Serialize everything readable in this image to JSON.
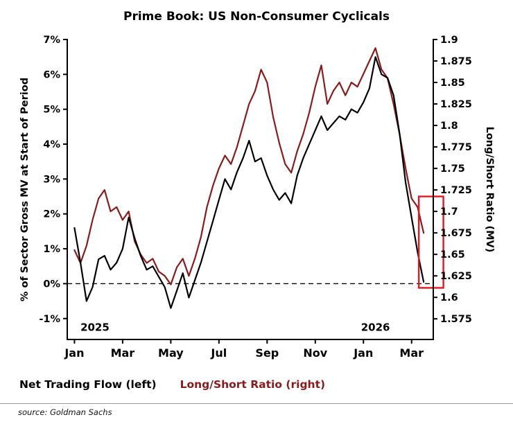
{
  "title": "Prime Book: US Non-Consumer Cyclicals",
  "legend": [
    {
      "label": "Net Trading Flow (left)",
      "color": "#000000"
    },
    {
      "label": "Long/Short Ratio (right)",
      "color": "#8b1a1a"
    }
  ],
  "source": "source: Goldman Sachs",
  "chart_data": {
    "type": "line",
    "title": "Prime Book: US Non-Consumer Cyclicals",
    "x_axis": {
      "unit": "months since Jan 2025",
      "range": [
        -0.3,
        14.9
      ],
      "tick_positions": [
        0,
        2,
        4,
        6,
        8,
        10,
        12,
        14
      ],
      "tick_labels": [
        "Jan",
        "Mar",
        "May",
        "Jul",
        "Sep",
        "Nov",
        "Jan",
        "Mar"
      ]
    },
    "left_axis": {
      "label": "% of Sector Gross MV at Start of Period",
      "range": [
        -1.6,
        7
      ],
      "tick_values": [
        7,
        6,
        5,
        4,
        3,
        2,
        1,
        0,
        -1
      ],
      "tick_labels": [
        "7%",
        "6%",
        "5%",
        "4%",
        "3%",
        "2%",
        "1%",
        "0%",
        "-1%"
      ]
    },
    "right_axis": {
      "label": "Long/Short Ratio (MV)",
      "range": [
        1.551,
        1.9
      ],
      "tick_values": [
        1.9,
        1.875,
        1.85,
        1.825,
        1.8,
        1.775,
        1.75,
        1.725,
        1.7,
        1.675,
        1.65,
        1.625,
        1.6,
        1.575
      ],
      "tick_labels": [
        "1.9",
        "1.875",
        "1.85",
        "1.825",
        "1.8",
        "1.775",
        "1.75",
        "1.725",
        "1.7",
        "1.675",
        "1.65",
        "1.625",
        "1.6",
        "1.575"
      ]
    },
    "zero_line": {
      "value": 0,
      "style": "dashed"
    },
    "year_labels": [
      {
        "text": "2025",
        "x": 0.85
      },
      {
        "text": "2026",
        "x": 12.5
      }
    ],
    "x_start": 0,
    "x_step": 0.25,
    "series": [
      {
        "name": "Net Trading Flow",
        "axis": "left",
        "color": "#000000",
        "values": [
          1.6,
          0.6,
          -0.5,
          -0.1,
          0.7,
          0.8,
          0.4,
          0.6,
          1.0,
          1.9,
          1.3,
          0.8,
          0.4,
          0.5,
          0.2,
          -0.1,
          -0.7,
          -0.2,
          0.3,
          -0.4,
          0.1,
          0.6,
          1.2,
          1.8,
          2.4,
          3.0,
          2.7,
          3.2,
          3.6,
          4.1,
          3.5,
          3.6,
          3.1,
          2.7,
          2.4,
          2.6,
          2.3,
          3.1,
          3.6,
          4.0,
          4.4,
          4.8,
          4.4,
          4.6,
          4.8,
          4.7,
          5.0,
          4.9,
          5.2,
          5.6,
          6.5,
          6.0,
          5.9,
          5.4,
          4.3,
          2.9,
          1.9,
          0.9,
          0.05
        ]
      },
      {
        "name": "Long/Short Ratio",
        "axis": "right",
        "color": "#8b1a1a",
        "values": [
          1.655,
          1.64,
          1.66,
          1.69,
          1.715,
          1.725,
          1.7,
          1.705,
          1.69,
          1.7,
          1.665,
          1.65,
          1.64,
          1.645,
          1.63,
          1.625,
          1.615,
          1.635,
          1.645,
          1.625,
          1.645,
          1.67,
          1.705,
          1.73,
          1.75,
          1.765,
          1.755,
          1.775,
          1.8,
          1.825,
          1.84,
          1.865,
          1.85,
          1.81,
          1.78,
          1.755,
          1.745,
          1.77,
          1.79,
          1.815,
          1.845,
          1.87,
          1.825,
          1.84,
          1.85,
          1.835,
          1.85,
          1.845,
          1.86,
          1.875,
          1.89,
          1.865,
          1.855,
          1.825,
          1.79,
          1.75,
          1.715,
          1.705,
          1.675
        ]
      }
    ],
    "highlight_box": {
      "x0": 14.3,
      "x1": 15.32,
      "y0_left": -0.12,
      "y1_left": 2.5,
      "color": "#e8141e"
    }
  }
}
